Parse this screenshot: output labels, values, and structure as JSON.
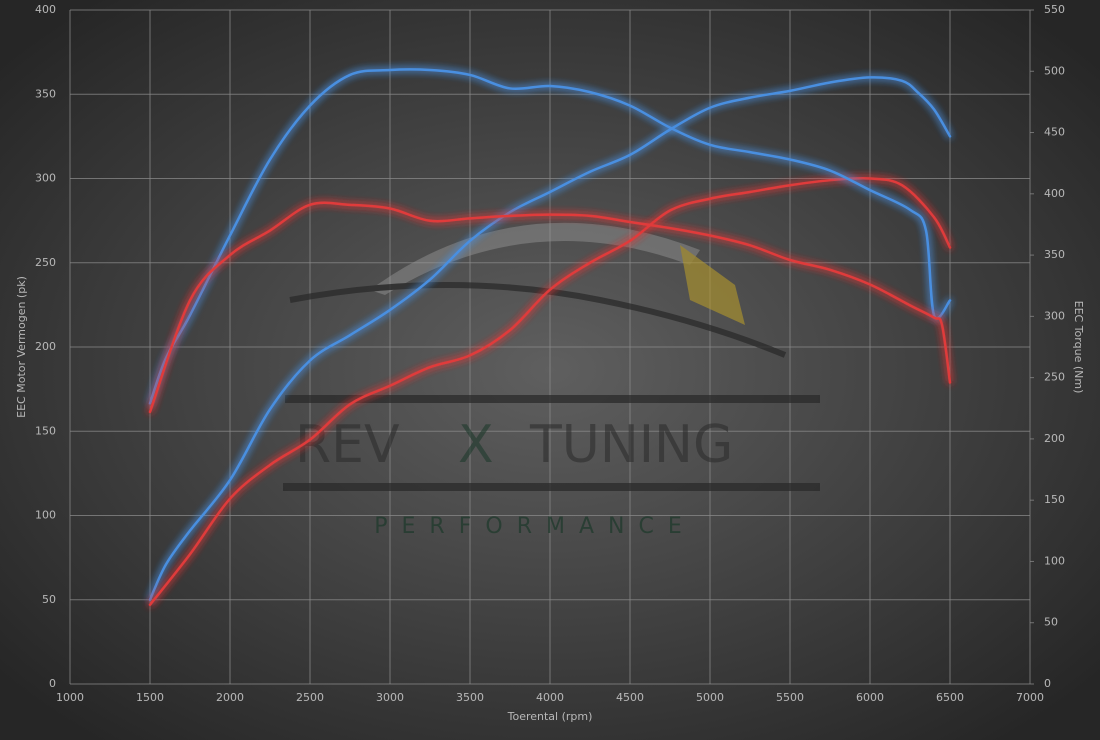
{
  "chart_data": {
    "type": "line",
    "xlabel": "Toerental (rpm)",
    "ylabel": "EEC Motor Vermogen (pk)",
    "y2label": "EEC Torque (Nm)",
    "watermark": [
      "REV",
      "X",
      "TUNING",
      "PERFORMANCE"
    ],
    "xlim": [
      1000,
      7000
    ],
    "xticks": [
      1000,
      1500,
      2000,
      2500,
      3000,
      3500,
      4000,
      4500,
      5000,
      5500,
      6000,
      6500,
      7000
    ],
    "ylim": [
      0,
      400
    ],
    "yticks": [
      0,
      50,
      100,
      150,
      200,
      250,
      300,
      350,
      400
    ],
    "y2lim": [
      0,
      550
    ],
    "y2ticks": [
      0,
      50,
      100,
      150,
      200,
      250,
      300,
      350,
      400,
      450,
      500,
      550
    ],
    "grid": true,
    "series": [
      {
        "color": "#4a8fe0",
        "axis": "y",
        "x": [
          1500,
          1600,
          1750,
          2000,
          2250,
          2500,
          2750,
          3000,
          3250,
          3500,
          3750,
          4000,
          4250,
          4500,
          4750,
          5000,
          5250,
          5500,
          5750,
          6000,
          6200,
          6300,
          6400,
          6500
        ],
        "values": [
          50,
          71,
          91,
          121,
          163,
          192,
          207,
          222,
          240,
          263,
          280,
          292,
          304,
          314,
          329,
          342,
          348,
          352,
          357,
          360,
          358,
          351,
          341,
          325
        ]
      },
      {
        "color": "#e03a3a",
        "axis": "y",
        "x": [
          1500,
          1750,
          2000,
          2250,
          2500,
          2750,
          3000,
          3250,
          3500,
          3750,
          4000,
          4250,
          4500,
          4750,
          5000,
          5250,
          5500,
          5750,
          6000,
          6200,
          6400,
          6500
        ],
        "values": [
          47,
          77,
          110,
          130,
          145,
          166,
          177,
          188,
          195,
          210,
          234,
          250,
          263,
          281,
          288,
          292,
          296,
          299,
          300,
          296,
          277,
          259
        ]
      },
      {
        "color": "#4a8fe0",
        "axis": "y2",
        "x": [
          1500,
          1600,
          1750,
          2000,
          2250,
          2500,
          2750,
          3000,
          3250,
          3500,
          3750,
          4000,
          4250,
          4500,
          4750,
          5000,
          5250,
          5500,
          5750,
          6000,
          6250,
          6350,
          6400,
          6500
        ],
        "values": [
          229,
          266,
          301,
          366,
          428,
          472,
          497,
          501,
          501,
          497,
          486,
          488,
          483,
          472,
          454,
          440,
          434,
          428,
          419,
          403,
          387,
          370,
          301,
          313
        ]
      },
      {
        "color": "#e03a3a",
        "axis": "y2",
        "x": [
          1500,
          1750,
          2000,
          2250,
          2500,
          2750,
          3000,
          3250,
          3500,
          3750,
          4000,
          4250,
          4500,
          4750,
          5000,
          5250,
          5500,
          5750,
          6000,
          6250,
          6400,
          6450,
          6500
        ],
        "values": [
          222,
          313,
          350,
          370,
          391,
          391,
          388,
          378,
          380,
          382,
          383,
          382,
          377,
          372,
          366,
          358,
          346,
          338,
          326,
          309,
          299,
          293,
          246
        ]
      }
    ]
  }
}
